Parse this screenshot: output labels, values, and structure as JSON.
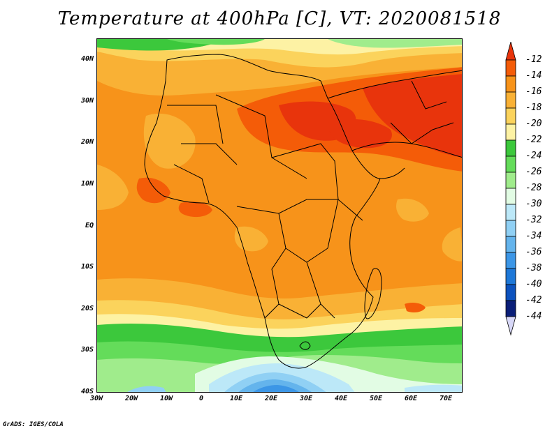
{
  "title": "Temperature at 400hPa [C], VT: 2020081518",
  "footer": "GrADS: IGES/COLA",
  "map": {
    "lon_range": [
      -30,
      75
    ],
    "lat_range": [
      -40,
      45
    ],
    "lat_ticks": [
      "40N",
      "30N",
      "20N",
      "10N",
      "EQ",
      "10S",
      "20S",
      "30S",
      "40S"
    ],
    "lon_ticks": [
      "30W",
      "20W",
      "10W",
      "0",
      "10E",
      "20E",
      "30E",
      "40E",
      "50E",
      "60E",
      "70E"
    ]
  },
  "colorbar": {
    "labels": [
      "-12",
      "-14",
      "-16",
      "-18",
      "-20",
      "-22",
      "-24",
      "-26",
      "-28",
      "-30",
      "-32",
      "-34",
      "-36",
      "-38",
      "-40",
      "-42",
      "-44"
    ],
    "colors": [
      "#e8340c",
      "#f45c08",
      "#f7931a",
      "#f9b135",
      "#fbd35c",
      "#fdf2a4",
      "#3cc83c",
      "#64dc5a",
      "#a0ec8c",
      "#e2fce4",
      "#bce8f8",
      "#90d0f4",
      "#64b4ec",
      "#3c96e6",
      "#1e78d8",
      "#0c52be",
      "#0a1e78"
    ],
    "top_color": "#e8340c",
    "bottom_color": "#d8d8f8"
  }
}
